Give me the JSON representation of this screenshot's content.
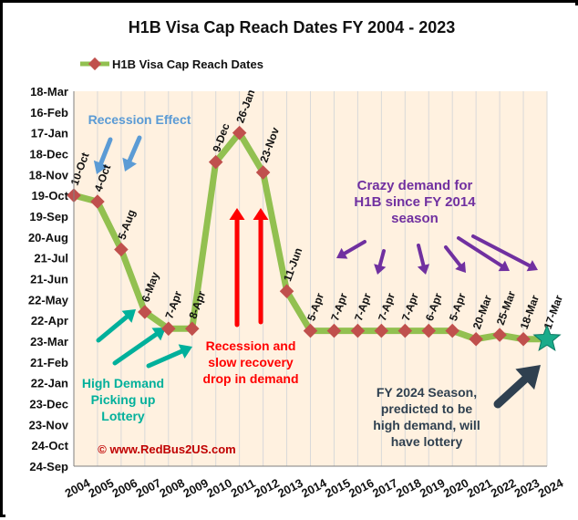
{
  "chart_data": {
    "type": "line",
    "title": "H1B Visa  Cap Reach Dates FY 2004 - 2023",
    "legend": {
      "position": "top-left",
      "label": "H1B Visa Cap Reach Dates"
    },
    "grid": {
      "vertical": true,
      "horizontal": false
    },
    "x": [
      "2004",
      "2005",
      "2006",
      "2007",
      "2008",
      "2009",
      "2010",
      "2011",
      "2012",
      "2013",
      "2014",
      "2015",
      "2016",
      "2017",
      "2018",
      "2019",
      "2020",
      "2021",
      "2022",
      "2023",
      "2024"
    ],
    "y_ticks": [
      "18-Mar",
      "16-Feb",
      "17-Jan",
      "18-Dec",
      "18-Nov",
      "19-Oct",
      "19-Sep",
      "20-Aug",
      "21-Jul",
      "21-Jun",
      "22-May",
      "22-Apr",
      "23-Mar",
      "21-Feb",
      "22-Jan",
      "23-Dec",
      "23-Nov",
      "24-Oct",
      "24-Sep"
    ],
    "series": [
      {
        "name": "H1B Visa Cap Reach Dates",
        "color": "#92c050",
        "marker_color": "#c0504d",
        "points": [
          {
            "x": "2004",
            "y_index": 5.0,
            "label": "10-Oct"
          },
          {
            "x": "2005",
            "y_index": 5.3,
            "label": "4-Oct"
          },
          {
            "x": "2006",
            "y_index": 7.6,
            "label": "5-Aug"
          },
          {
            "x": "2007",
            "y_index": 10.6,
            "label": "6-May"
          },
          {
            "x": "2008",
            "y_index": 11.4,
            "label": "7-Apr"
          },
          {
            "x": "2009",
            "y_index": 11.4,
            "label": "8-Apr"
          },
          {
            "x": "2010",
            "y_index": 3.4,
            "label": "9-Dec"
          },
          {
            "x": "2011",
            "y_index": 2.0,
            "label": "26-Jan"
          },
          {
            "x": "2012",
            "y_index": 3.9,
            "label": "23-Nov"
          },
          {
            "x": "2013",
            "y_index": 9.6,
            "label": "11-Jun"
          },
          {
            "x": "2014",
            "y_index": 11.5,
            "label": "5-Apr"
          },
          {
            "x": "2015",
            "y_index": 11.5,
            "label": "7-Apr"
          },
          {
            "x": "2016",
            "y_index": 11.5,
            "label": "7-Apr"
          },
          {
            "x": "2017",
            "y_index": 11.5,
            "label": "7-Apr"
          },
          {
            "x": "2018",
            "y_index": 11.5,
            "label": "7-Apr"
          },
          {
            "x": "2019",
            "y_index": 11.5,
            "label": "6-Apr"
          },
          {
            "x": "2020",
            "y_index": 11.5,
            "label": "5-Apr"
          },
          {
            "x": "2021",
            "y_index": 11.9,
            "label": "20-Mar"
          },
          {
            "x": "2022",
            "y_index": 11.7,
            "label": "25-Mar"
          },
          {
            "x": "2023",
            "y_index": 11.9,
            "label": "18-Mar"
          },
          {
            "x": "2024",
            "y_index": 11.9,
            "label": "17-Mar",
            "marker": "star",
            "marker_color": "#1aab8a"
          }
        ]
      }
    ],
    "annotations": {
      "recession_effect": "Recession Effect",
      "crazy_demand": [
        "Crazy demand for",
        "H1B since FY 2014",
        "season"
      ],
      "recession_recovery": [
        "Recession and",
        "slow recovery",
        "drop in demand"
      ],
      "high_demand": [
        "High Demand",
        "Picking up",
        "Lottery"
      ],
      "fy2024": [
        "FY 2024 Season,",
        "predicted to be",
        "high demand, will",
        "have lottery"
      ],
      "source": "© www.RedBus2US.com"
    },
    "colors": {
      "recession_effect": "#5b9bd5",
      "crazy_demand": "#7030a0",
      "recession_recovery": "#ff0000",
      "high_demand": "#00b09b",
      "fy2024": "#2f4050",
      "source": "#c00000"
    }
  }
}
